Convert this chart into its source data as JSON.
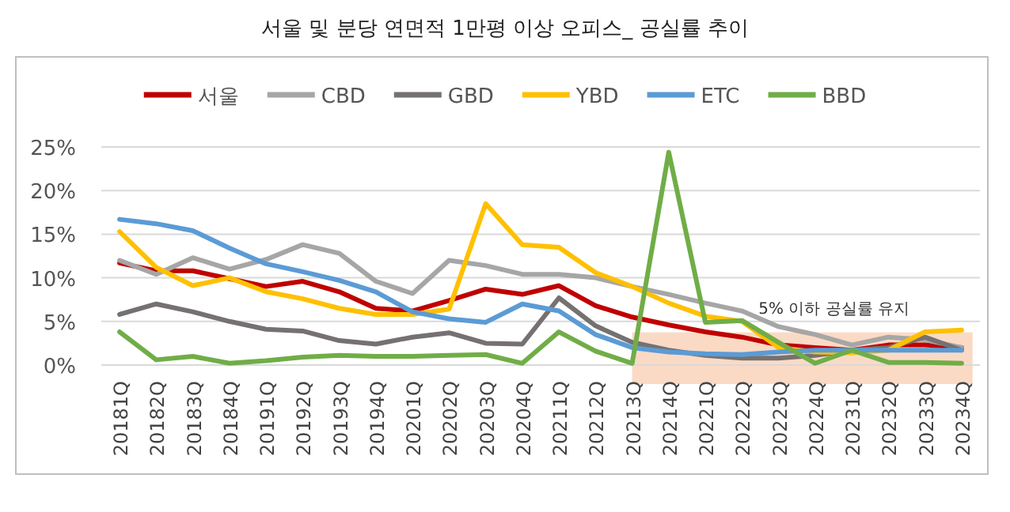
{
  "chart_data": {
    "type": "line",
    "title": "서울 및 분당 연면적 1만평 이상 오피스_ 공실률 추이",
    "categories": [
      "20181Q",
      "20182Q",
      "20183Q",
      "20184Q",
      "20191Q",
      "20192Q",
      "20193Q",
      "20194Q",
      "20201Q",
      "20202Q",
      "20203Q",
      "20204Q",
      "20211Q",
      "20212Q",
      "20213Q",
      "20214Q",
      "20221Q",
      "20222Q",
      "20223Q",
      "20224Q",
      "20231Q",
      "20232Q",
      "20233Q",
      "20234Q"
    ],
    "series": [
      {
        "name": "서울",
        "color": "#c00000",
        "values": [
          11.7,
          10.8,
          10.8,
          9.9,
          9.0,
          9.6,
          8.4,
          6.5,
          6.2,
          7.4,
          8.7,
          8.1,
          9.1,
          6.8,
          5.5,
          4.6,
          3.8,
          3.2,
          2.3,
          2.0,
          1.7,
          2.3,
          2.3,
          2.0
        ]
      },
      {
        "name": "CBD",
        "color": "#a6a6a6",
        "values": [
          12.0,
          10.4,
          12.3,
          11.0,
          12.1,
          13.8,
          12.8,
          9.6,
          8.2,
          12.0,
          11.4,
          10.4,
          10.4,
          10.0,
          9.0,
          8.1,
          7.1,
          6.2,
          4.4,
          3.5,
          2.3,
          3.2,
          2.9,
          2.0
        ]
      },
      {
        "name": "GBD",
        "color": "#767171",
        "values": [
          5.8,
          7.0,
          6.1,
          5.0,
          4.1,
          3.9,
          2.8,
          2.4,
          3.2,
          3.7,
          2.5,
          2.4,
          7.7,
          4.5,
          2.6,
          1.7,
          1.1,
          0.8,
          0.8,
          1.1,
          1.7,
          2.0,
          3.2,
          1.7
        ]
      },
      {
        "name": "YBD",
        "color": "#ffc000",
        "values": [
          15.3,
          11.2,
          9.1,
          10.0,
          8.4,
          7.6,
          6.5,
          5.8,
          5.8,
          6.4,
          18.5,
          13.8,
          13.5,
          10.6,
          9.0,
          7.1,
          5.6,
          5.0,
          2.0,
          1.5,
          1.4,
          1.7,
          3.8,
          4.0
        ]
      },
      {
        "name": "ETC",
        "color": "#5b9bd5",
        "values": [
          16.7,
          16.2,
          15.4,
          13.4,
          11.6,
          10.7,
          9.7,
          8.4,
          6.1,
          5.3,
          4.9,
          7.0,
          6.2,
          3.5,
          2.0,
          1.5,
          1.3,
          1.2,
          1.5,
          1.7,
          1.7,
          1.7,
          1.7,
          1.7
        ]
      },
      {
        "name": "BBD",
        "color": "#70ad47",
        "values": [
          3.8,
          0.6,
          1.0,
          0.2,
          0.5,
          0.9,
          1.1,
          1.0,
          1.0,
          1.1,
          1.2,
          0.2,
          3.8,
          1.6,
          0.2,
          24.4,
          4.9,
          5.1,
          2.6,
          0.2,
          1.7,
          0.3,
          0.3,
          0.2
        ]
      }
    ],
    "ylim": [
      0,
      25
    ],
    "yticks": [
      {
        "value": 0,
        "label": "0%"
      },
      {
        "value": 5,
        "label": "5%"
      },
      {
        "value": 10,
        "label": "10%"
      },
      {
        "value": 15,
        "label": "15%"
      },
      {
        "value": 20,
        "label": "20%"
      },
      {
        "value": 25,
        "label": "25%"
      }
    ],
    "bands": [
      {
        "axis": "x",
        "from": "20213Q",
        "to": "20234Q",
        "label": "5% 이하 공실률 유지",
        "color": "#f8cbad"
      }
    ],
    "grid": "y",
    "legend": "top",
    "marker": "none",
    "line_style": "solid"
  }
}
